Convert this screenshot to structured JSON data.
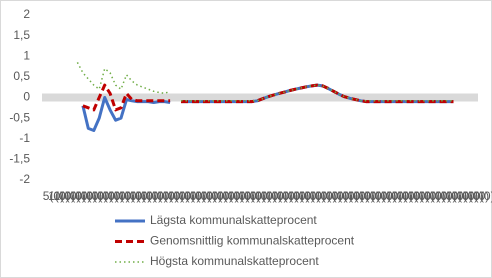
{
  "chart_data": {
    "type": "line",
    "categories": [
      "5(0)",
      "1(0)",
      "1(0)",
      "0(0)",
      "0(0)",
      "0(0)",
      "0(0)",
      "0(0)",
      "0(0)",
      "0(0)",
      "0(0)",
      "0(0)",
      "0(0)",
      "0(0)",
      "0(0)",
      "0(0)",
      "0(0)",
      "0(0)",
      "0(0)",
      "0(0)",
      "0(0)",
      "0(0)",
      "0(0)",
      "0(0)",
      "0(0)",
      "0(0)",
      "0(0)",
      "0(0)",
      "0(0)",
      "0(0)",
      "0(0)",
      "0(0)",
      "0(0)",
      "0(0)",
      "0(0)",
      "0(0)",
      "0(0)",
      "0(0)",
      "0(0)",
      "0(0)",
      "0(0)",
      "0(0)",
      "0(0)",
      "0(0)",
      "0(0)",
      "0(0)",
      "0(0)",
      "0(0)",
      "0(0)",
      "0(0)",
      "0(0)",
      "0(0)",
      "0(0)",
      "0(0)",
      "0(0)",
      "0(0)",
      "0(0)",
      "0(0)",
      "0(0)",
      "0(0)",
      "0(0)",
      "0(0)",
      "0(0)",
      "0(0)",
      "0(0)",
      "0(0)",
      "0(0)",
      "0(0)",
      "0(0)",
      "0(0)",
      "0(0)",
      "0(0)",
      "0(0)",
      "0(0)",
      "0(0)",
      "0(0)",
      "0(0)",
      "0(0)",
      "0(0)",
      "0(0)"
    ],
    "series": [
      {
        "name": "Lägsta kommunalskatteprocent",
        "color": "#4472c4",
        "style": "solid",
        "values": [
          null,
          null,
          null,
          null,
          null,
          null,
          null,
          -0.2,
          -0.75,
          -0.8,
          -0.5,
          0,
          -0.3,
          -0.55,
          -0.5,
          -0.05,
          -0.08,
          -0.1,
          -0.1,
          -0.1,
          -0.12,
          -0.1,
          -0.1,
          -0.12,
          null,
          -0.1,
          -0.1,
          -0.1,
          -0.1,
          -0.1,
          -0.1,
          -0.1,
          -0.1,
          -0.1,
          -0.1,
          -0.1,
          -0.1,
          -0.1,
          -0.1,
          -0.08,
          -0.03,
          0.02,
          0.06,
          0.1,
          0.13,
          0.17,
          0.2,
          0.23,
          0.26,
          0.28,
          0.3,
          0.28,
          0.22,
          0.15,
          0.08,
          0.02,
          -0.02,
          -0.05,
          -0.08,
          -0.1,
          -0.1,
          -0.1,
          -0.1,
          -0.1,
          -0.1,
          -0.1,
          -0.1,
          -0.1,
          -0.1,
          -0.1,
          -0.1,
          -0.1,
          -0.1,
          -0.1,
          -0.1,
          -0.1,
          null,
          null,
          null,
          null
        ]
      },
      {
        "name": "Genomsnittlig kommunalskatteprocent",
        "color": "#c00000",
        "style": "dashed",
        "values": [
          null,
          null,
          null,
          null,
          null,
          null,
          null,
          -0.2,
          -0.25,
          -0.3,
          0,
          0.3,
          0.1,
          -0.3,
          -0.25,
          0.1,
          -0.05,
          -0.08,
          -0.08,
          -0.08,
          -0.08,
          -0.08,
          -0.08,
          -0.08,
          null,
          -0.1,
          -0.1,
          -0.1,
          -0.1,
          -0.1,
          -0.1,
          -0.1,
          -0.1,
          -0.1,
          -0.1,
          -0.1,
          -0.1,
          -0.1,
          -0.1,
          -0.08,
          -0.03,
          0.02,
          0.06,
          0.1,
          0.13,
          0.17,
          0.2,
          0.23,
          0.26,
          0.28,
          0.3,
          0.28,
          0.22,
          0.15,
          0.08,
          0.02,
          -0.02,
          -0.05,
          -0.08,
          -0.1,
          -0.1,
          -0.1,
          -0.1,
          -0.1,
          -0.1,
          -0.1,
          -0.1,
          -0.1,
          -0.1,
          -0.1,
          -0.1,
          -0.1,
          -0.1,
          -0.1,
          -0.1,
          -0.1,
          null,
          null,
          null,
          null
        ]
      },
      {
        "name": "Högsta kommunalskatteprocent",
        "color": "#70ad47",
        "style": "dotted",
        "values": [
          null,
          null,
          null,
          null,
          null,
          null,
          0.85,
          0.6,
          0.45,
          0.3,
          0.2,
          0.7,
          0.6,
          0.3,
          0.2,
          0.55,
          0.4,
          0.3,
          0.25,
          0.2,
          0.15,
          0.12,
          0.1,
          0.15,
          null,
          -0.08,
          -0.08,
          -0.08,
          -0.08,
          -0.08,
          -0.08,
          -0.08,
          -0.08,
          -0.08,
          -0.08,
          -0.08,
          -0.08,
          -0.08,
          -0.08,
          -0.08,
          -0.03,
          0.02,
          0.06,
          0.1,
          0.13,
          0.17,
          0.2,
          0.23,
          0.26,
          0.28,
          0.3,
          0.28,
          0.22,
          0.15,
          0.08,
          0.02,
          -0.02,
          -0.05,
          -0.08,
          -0.08,
          -0.08,
          -0.08,
          -0.08,
          -0.08,
          -0.08,
          -0.08,
          -0.08,
          -0.08,
          -0.08,
          -0.08,
          -0.08,
          -0.08,
          -0.08,
          -0.08,
          -0.08,
          -0.08,
          null,
          null,
          null,
          null
        ]
      }
    ],
    "ylim": [
      -2,
      2
    ],
    "yticks": [
      2,
      {
        "value": 1.5,
        "label": "1,5"
      },
      1,
      {
        "value": 0.5,
        "label": "0,5"
      },
      0,
      {
        "value": -0.5,
        "label": "-0,5"
      },
      -1,
      {
        "value": -1.5,
        "label": "-1,5"
      },
      -2
    ],
    "grid": false,
    "legend": "bottom"
  }
}
